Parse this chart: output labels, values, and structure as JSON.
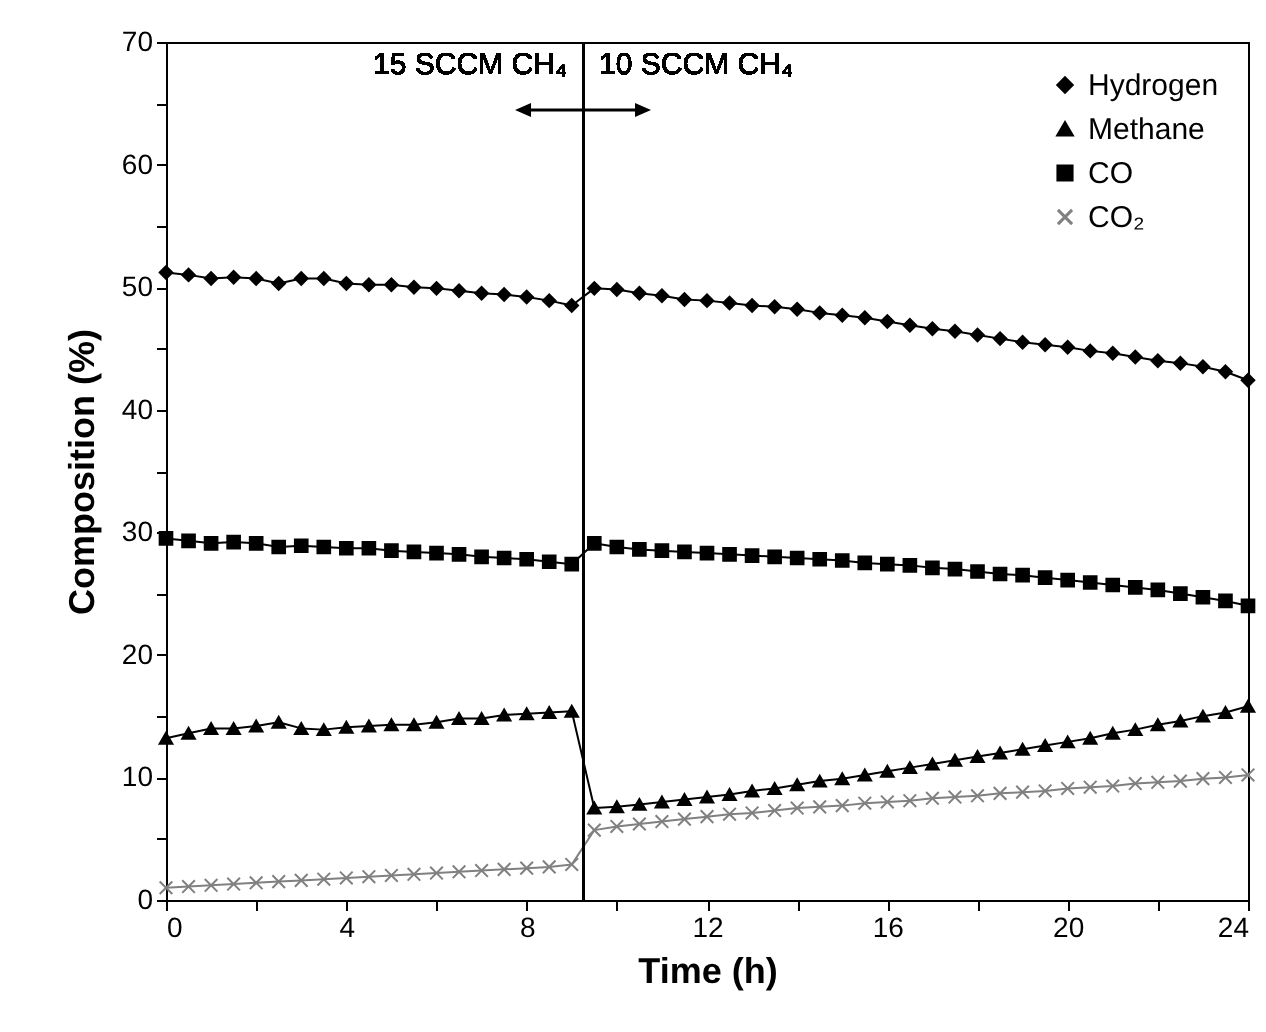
{
  "chart_data": {
    "type": "line",
    "xlabel": "Time (h)",
    "ylabel": "Composition (%)",
    "x": [
      0,
      0.5,
      1,
      1.5,
      2,
      2.5,
      3,
      3.5,
      4,
      4.5,
      5,
      5.5,
      6,
      6.5,
      7,
      7.5,
      8,
      8.5,
      9,
      9.5,
      10,
      10.5,
      11,
      11.5,
      12,
      12.5,
      13,
      13.5,
      14,
      14.5,
      15,
      15.5,
      16,
      16.5,
      17,
      17.5,
      18,
      18.5,
      19,
      19.5,
      20,
      20.5,
      21,
      21.5,
      22,
      22.5,
      23,
      23.5,
      24
    ],
    "series": [
      {
        "name": "Hydrogen",
        "color": "#000000",
        "marker": "diamond",
        "values": [
          51.2,
          51.0,
          50.7,
          50.8,
          50.7,
          50.3,
          50.7,
          50.7,
          50.3,
          50.2,
          50.2,
          50.0,
          49.9,
          49.7,
          49.5,
          49.4,
          49.2,
          48.9,
          48.5,
          49.9,
          49.8,
          49.5,
          49.3,
          49.0,
          48.9,
          48.7,
          48.5,
          48.4,
          48.2,
          47.9,
          47.7,
          47.5,
          47.2,
          46.9,
          46.6,
          46.4,
          46.1,
          45.8,
          45.5,
          45.3,
          45.1,
          44.8,
          44.6,
          44.3,
          44.0,
          43.8,
          43.5,
          43.1,
          42.4
        ]
      },
      {
        "name": "Methane",
        "color": "#000000",
        "marker": "triangle",
        "values": [
          13.2,
          13.6,
          14.0,
          14.0,
          14.2,
          14.5,
          14.0,
          13.9,
          14.1,
          14.2,
          14.3,
          14.3,
          14.5,
          14.8,
          14.8,
          15.1,
          15.2,
          15.3,
          15.4,
          7.5,
          7.6,
          7.8,
          8.0,
          8.2,
          8.4,
          8.6,
          8.9,
          9.1,
          9.4,
          9.7,
          9.9,
          10.2,
          10.5,
          10.8,
          11.1,
          11.4,
          11.7,
          12.0,
          12.3,
          12.6,
          12.9,
          13.2,
          13.6,
          13.9,
          14.3,
          14.6,
          15.0,
          15.3,
          15.8
        ]
      },
      {
        "name": "CO",
        "color": "#000000",
        "marker": "square",
        "values": [
          29.5,
          29.3,
          29.1,
          29.2,
          29.1,
          28.8,
          28.9,
          28.8,
          28.7,
          28.7,
          28.5,
          28.4,
          28.3,
          28.2,
          28.0,
          27.9,
          27.8,
          27.6,
          27.4,
          29.1,
          28.8,
          28.6,
          28.5,
          28.4,
          28.3,
          28.2,
          28.1,
          28.0,
          27.9,
          27.8,
          27.7,
          27.5,
          27.4,
          27.3,
          27.1,
          27.0,
          26.8,
          26.6,
          26.5,
          26.3,
          26.1,
          25.9,
          25.7,
          25.5,
          25.3,
          25.0,
          24.7,
          24.4,
          24.0
        ]
      },
      {
        "name": "CO₂",
        "color": "#808080",
        "marker": "cross",
        "values": [
          1.0,
          1.1,
          1.2,
          1.3,
          1.4,
          1.5,
          1.6,
          1.7,
          1.8,
          1.9,
          2.0,
          2.1,
          2.2,
          2.3,
          2.4,
          2.5,
          2.6,
          2.7,
          2.9,
          5.7,
          6.0,
          6.2,
          6.4,
          6.6,
          6.8,
          7.0,
          7.1,
          7.3,
          7.5,
          7.6,
          7.7,
          7.9,
          8.0,
          8.1,
          8.3,
          8.4,
          8.5,
          8.7,
          8.8,
          8.9,
          9.1,
          9.2,
          9.3,
          9.5,
          9.6,
          9.7,
          9.9,
          10.0,
          10.2
        ]
      }
    ],
    "xlim": [
      0,
      24
    ],
    "xticks": [
      0,
      {
        "value": 2,
        "label": null
      },
      4,
      {
        "value": 6,
        "label": null
      },
      8,
      {
        "value": 10,
        "label": null
      },
      12,
      {
        "value": 14,
        "label": null
      },
      16,
      {
        "value": 18,
        "label": null
      },
      20,
      {
        "value": 22,
        "label": null
      },
      24
    ],
    "ylim": [
      0,
      70
    ],
    "yticks": [
      0,
      {
        "value": 5,
        "label": null
      },
      10,
      {
        "value": 15,
        "label": null
      },
      20,
      {
        "value": 25,
        "label": null
      },
      30,
      {
        "value": 35,
        "label": null
      },
      40,
      {
        "value": 45,
        "label": null
      },
      50,
      {
        "value": 55,
        "label": null
      },
      60,
      {
        "value": 65,
        "label": null
      },
      70
    ],
    "ref_lines": [
      {
        "axis": "x",
        "value": 9.25,
        "color": "#000000"
      }
    ],
    "annotations": [
      "15 SCCM CH₄",
      "10 SCCM CH₄"
    ],
    "legend": "top right"
  }
}
